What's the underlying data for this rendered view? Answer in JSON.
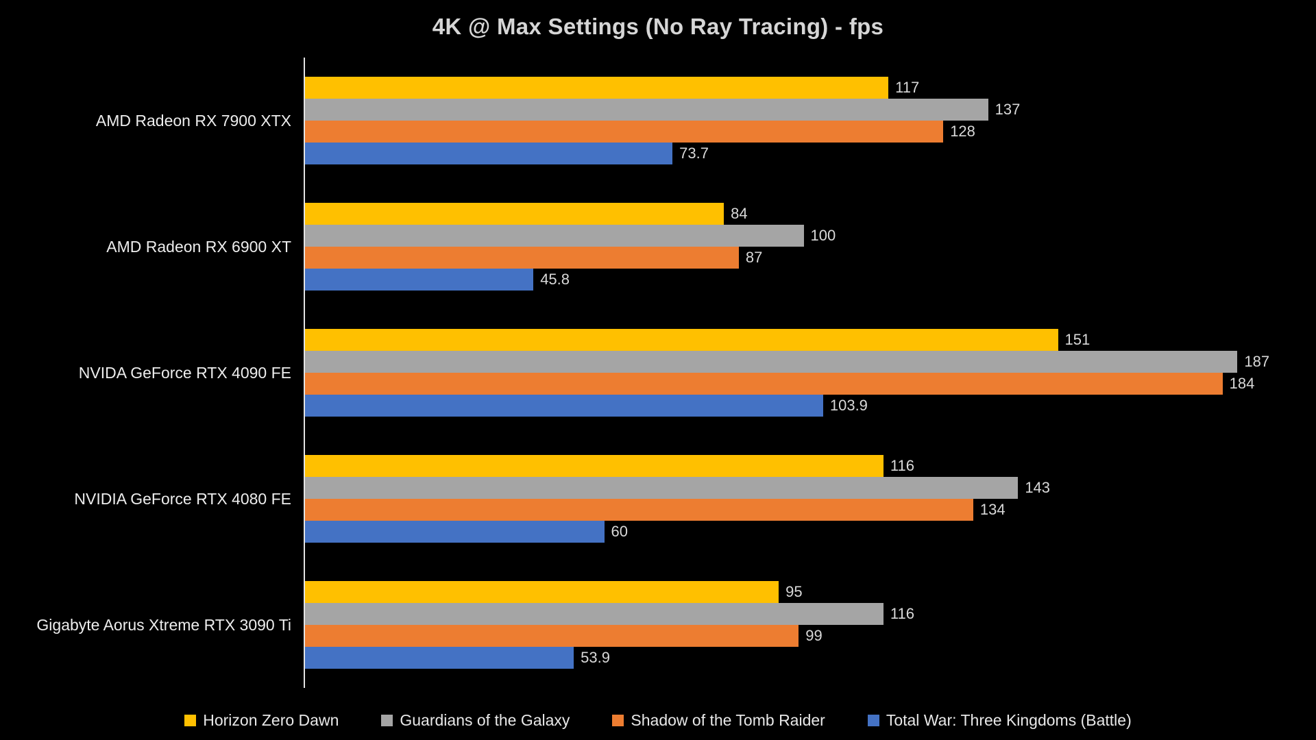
{
  "chart_data": {
    "type": "bar",
    "orientation": "horizontal",
    "title": "4K @ Max Settings (No Ray Tracing) - fps",
    "categories": [
      "AMD Radeon RX 7900 XTX",
      "AMD Radeon RX 6900 XT",
      "NVIDA GeForce RTX 4090 FE",
      "NVIDIA GeForce RTX 4080 FE",
      "Gigabyte Aorus Xtreme RTX 3090 Ti"
    ],
    "series": [
      {
        "name": "Horizon Zero Dawn",
        "color": "#FFC000",
        "values": [
          117,
          84,
          151,
          116,
          95
        ]
      },
      {
        "name": "Guardians of the Galaxy",
        "color": "#A5A5A5",
        "values": [
          137,
          100,
          187,
          143,
          116
        ]
      },
      {
        "name": "Shadow of the Tomb Raider",
        "color": "#ED7D31",
        "values": [
          128,
          87,
          184,
          134,
          99
        ]
      },
      {
        "name": "Total War: Three Kingdoms (Battle)",
        "color": "#4472C4",
        "values": [
          73.7,
          45.8,
          103.9,
          60,
          53.9
        ]
      }
    ],
    "xlabel": "",
    "ylabel": "",
    "xlim": [
      0,
      200
    ],
    "grid": false,
    "legend_position": "bottom",
    "background_color": "#000000",
    "text_color": "#D9D9D9",
    "axis_line_color": "#E4E4E4"
  }
}
